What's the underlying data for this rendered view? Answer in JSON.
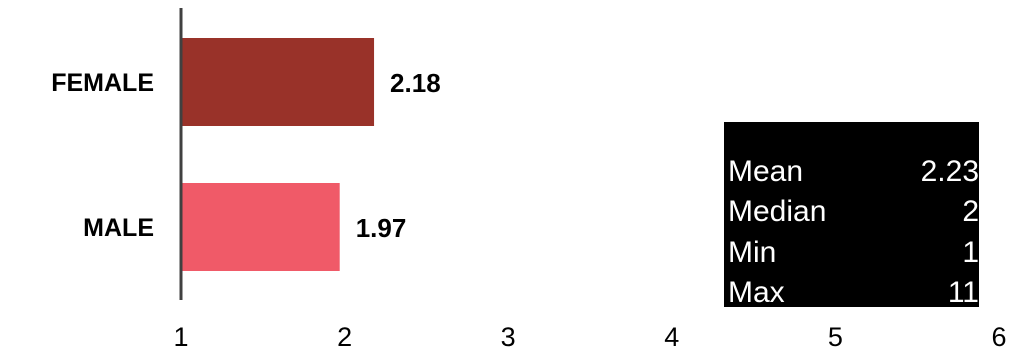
{
  "chart_data": {
    "type": "bar",
    "orientation": "horizontal",
    "categories": [
      "FEMALE",
      "MALE"
    ],
    "values": [
      2.18,
      1.97
    ],
    "value_labels": [
      "2.18",
      "1.97"
    ],
    "colors": [
      "#993229",
      "#f05a68"
    ],
    "xlim": [
      1,
      6
    ],
    "xticks": [
      "1",
      "2",
      "3",
      "4",
      "5",
      "6"
    ],
    "grid": false
  },
  "stats": {
    "rows": [
      {
        "label": "Mean",
        "value": "2.23"
      },
      {
        "label": "Median",
        "value": "2"
      },
      {
        "label": "Min",
        "value": "1"
      },
      {
        "label": "Max",
        "value": "11"
      }
    ]
  }
}
